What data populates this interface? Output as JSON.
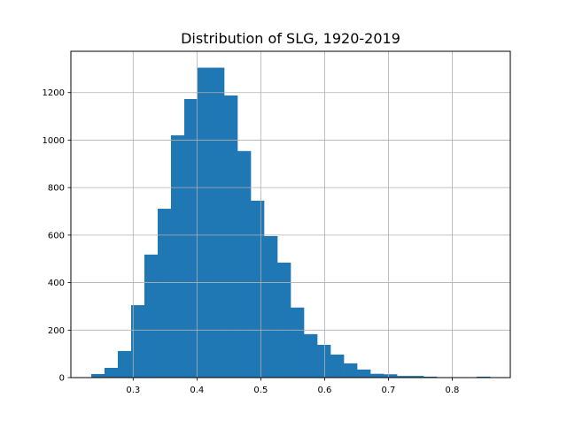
{
  "chart_data": {
    "type": "bar",
    "title": "Distribution of SLG, 1920-2019",
    "xlabel": "",
    "ylabel": "",
    "bin_start": 0.2343,
    "bin_width": 0.02083,
    "values": [
      15,
      41,
      112,
      305,
      518,
      711,
      1020,
      1173,
      1305,
      1305,
      1188,
      954,
      745,
      596,
      484,
      295,
      183,
      138,
      97,
      60,
      34,
      16,
      14,
      7,
      7,
      4,
      0,
      0,
      0,
      4
    ],
    "xlim": [
      0.2024,
      0.891
    ],
    "ylim": [
      0,
      1374
    ],
    "xticks": [
      0.3,
      0.4,
      0.5,
      0.6,
      0.7,
      0.8
    ],
    "xtick_labels": [
      "0.3",
      "0.4",
      "0.5",
      "0.6",
      "0.7",
      "0.8"
    ],
    "yticks": [
      0,
      200,
      400,
      600,
      800,
      1000,
      1200
    ],
    "ytick_labels": [
      "0",
      "200",
      "400",
      "600",
      "800",
      "1000",
      "1200"
    ],
    "grid": true,
    "bar_color": "#1f77b4",
    "grid_color": "#b0b0b0"
  }
}
